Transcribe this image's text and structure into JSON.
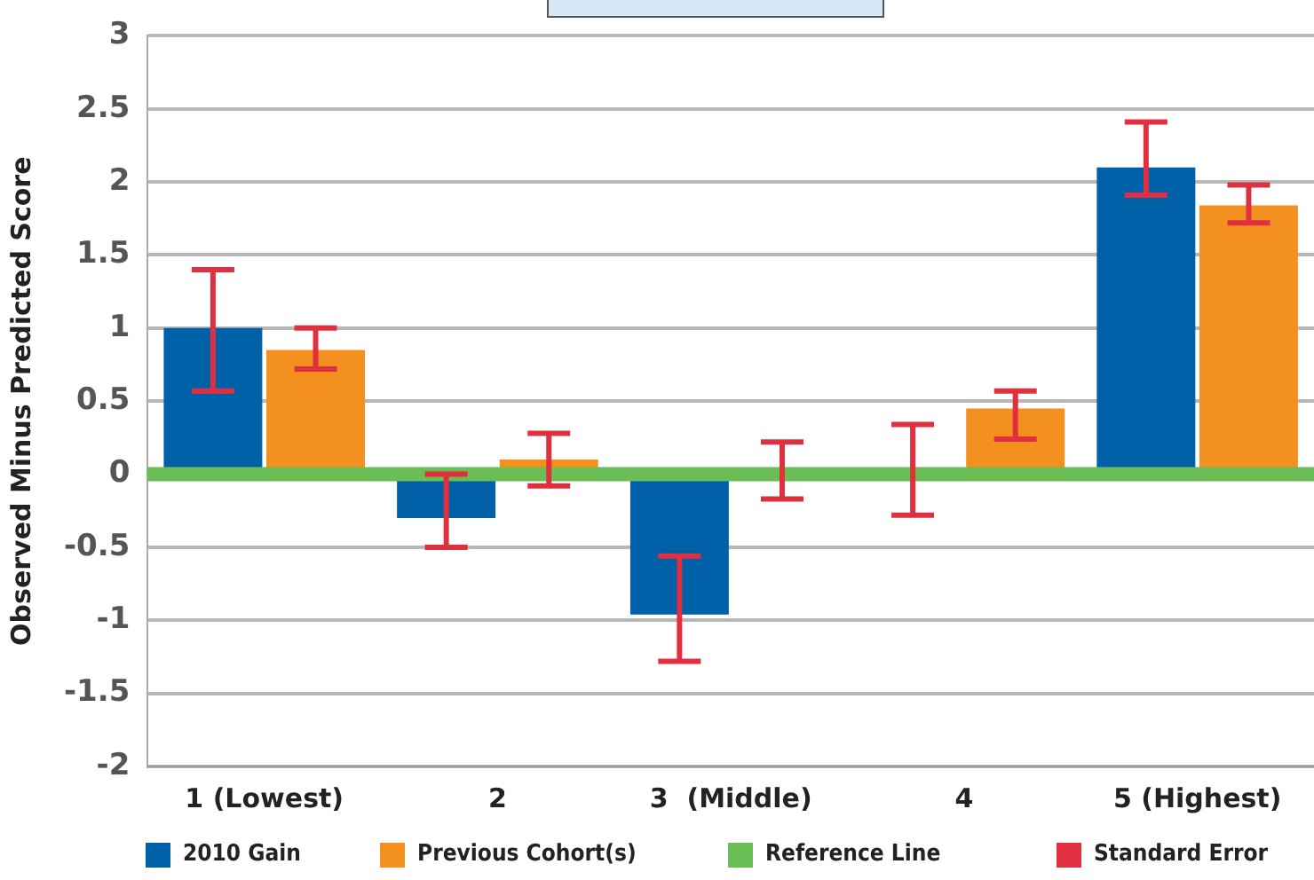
{
  "chart_data": {
    "type": "bar",
    "ylabel": "Observed Minus Predicted Score",
    "categories": [
      "1 (Lowest)",
      "2",
      "3  (Middle)",
      "4",
      "5 (Highest)"
    ],
    "series": [
      {
        "name": "2010 Gain",
        "color": "#0060a8",
        "values": [
          1.0,
          -0.3,
          -0.96,
          0,
          2.1
        ],
        "errors": [
          [
            0.57,
            1.4
          ],
          [
            -0.5,
            0.0
          ],
          [
            -1.28,
            -0.56
          ],
          [
            -0.28,
            0.34
          ],
          [
            1.91,
            2.41
          ]
        ]
      },
      {
        "name": "Previous Cohort(s)",
        "color": "#f39020",
        "values": [
          0.85,
          0.1,
          0,
          0.45,
          1.84
        ],
        "errors": [
          [
            0.72,
            1.0
          ],
          [
            -0.08,
            0.28
          ],
          [
            -0.17,
            0.22
          ],
          [
            0.24,
            0.57
          ],
          [
            1.72,
            1.98
          ]
        ]
      }
    ],
    "ylim": [
      -2,
      3
    ],
    "yticks": [
      -2,
      -1.5,
      -1,
      -0.5,
      0,
      0.5,
      1,
      1.5,
      2,
      2.5,
      3
    ],
    "grid": "y",
    "legend": "bottom",
    "ref_lines": [
      {
        "axis": "y",
        "value": 0,
        "label": "Reference Line",
        "color": "#6bbd55"
      }
    ],
    "annotations": [
      "Standard Error"
    ]
  }
}
